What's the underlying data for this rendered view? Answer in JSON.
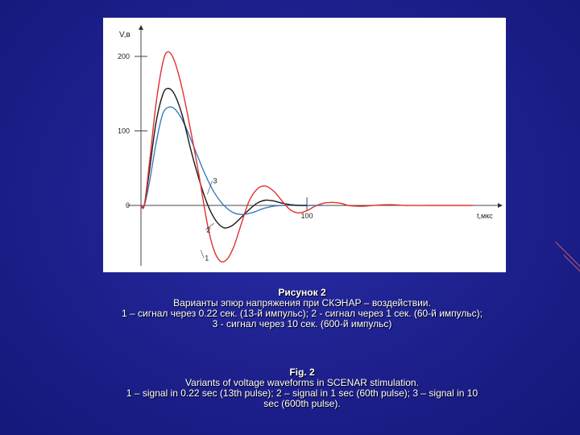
{
  "caption_ru": {
    "title": "Рисунок 2",
    "line1": "Варианты эпюр напряжения при СКЭНАР – воздействии.",
    "line2": "1 – сигнал через 0.22 сек. (13-й импульс); 2 - сигнал через 1 сек. (60-й импульс);",
    "line3": "3 - сигнал через 10 сек. (600-й импульс)"
  },
  "caption_en": {
    "title": "Fig. 2",
    "line1": "Variants of voltage waveforms in SCENAR stimulation.",
    "line2": "1 – signal in 0.22 sec (13th pulse); 2 – signal in 1 sec (60th pulse); 3 – signal in 10",
    "line3": "sec (600th pulse)."
  },
  "chart_data": {
    "type": "line",
    "xlabel": "t,мкс",
    "ylabel": "V,в",
    "xlim": [
      0,
      210
    ],
    "ylim": [
      -80,
      230
    ],
    "x_ticks": [
      100
    ],
    "y_ticks": [
      0,
      100,
      200
    ],
    "grid": false,
    "colors": {
      "1": "#e03030",
      "2": "#1a1a1a",
      "3": "#3a7cc0"
    },
    "series": [
      {
        "name": "1",
        "points": [
          [
            0,
            0
          ],
          [
            2,
            0
          ],
          [
            5,
            55
          ],
          [
            9,
            135
          ],
          [
            13,
            190
          ],
          [
            16,
            206
          ],
          [
            20,
            195
          ],
          [
            25,
            155
          ],
          [
            30,
            100
          ],
          [
            35,
            40
          ],
          [
            40,
            -25
          ],
          [
            44,
            -60
          ],
          [
            48,
            -75
          ],
          [
            52,
            -72
          ],
          [
            56,
            -55
          ],
          [
            60,
            -28
          ],
          [
            65,
            5
          ],
          [
            70,
            22
          ],
          [
            75,
            26
          ],
          [
            80,
            19
          ],
          [
            85,
            6
          ],
          [
            90,
            -6
          ],
          [
            95,
            -10
          ],
          [
            100,
            -7
          ],
          [
            105,
            -1
          ],
          [
            110,
            3
          ],
          [
            115,
            4
          ],
          [
            120,
            3
          ],
          [
            125,
            0
          ],
          [
            130,
            -1
          ],
          [
            135,
            -1
          ],
          [
            140,
            0
          ],
          [
            150,
            1
          ],
          [
            160,
            0
          ],
          [
            175,
            0
          ],
          [
            200,
            0
          ]
        ]
      },
      {
        "name": "2",
        "points": [
          [
            0,
            0
          ],
          [
            2,
            0
          ],
          [
            5,
            45
          ],
          [
            9,
            110
          ],
          [
            13,
            148
          ],
          [
            16,
            157
          ],
          [
            20,
            150
          ],
          [
            25,
            120
          ],
          [
            30,
            75
          ],
          [
            35,
            35
          ],
          [
            40,
            2
          ],
          [
            45,
            -20
          ],
          [
            50,
            -30
          ],
          [
            55,
            -27
          ],
          [
            60,
            -17
          ],
          [
            65,
            -6
          ],
          [
            70,
            3
          ],
          [
            75,
            7
          ],
          [
            80,
            6
          ],
          [
            85,
            3
          ],
          [
            90,
            1
          ],
          [
            95,
            0
          ],
          [
            100,
            0
          ]
        ]
      },
      {
        "name": "3",
        "points": [
          [
            0,
            0
          ],
          [
            2,
            0
          ],
          [
            5,
            30
          ],
          [
            9,
            82
          ],
          [
            13,
            122
          ],
          [
            17,
            132
          ],
          [
            21,
            128
          ],
          [
            26,
            110
          ],
          [
            32,
            78
          ],
          [
            38,
            45
          ],
          [
            44,
            18
          ],
          [
            50,
            0
          ],
          [
            56,
            -10
          ],
          [
            62,
            -12
          ],
          [
            68,
            -9
          ],
          [
            74,
            -4
          ],
          [
            80,
            -1
          ],
          [
            86,
            0
          ],
          [
            100,
            0
          ],
          [
            110,
            0
          ]
        ]
      }
    ],
    "annotations": [
      "1",
      "2",
      "3"
    ]
  }
}
